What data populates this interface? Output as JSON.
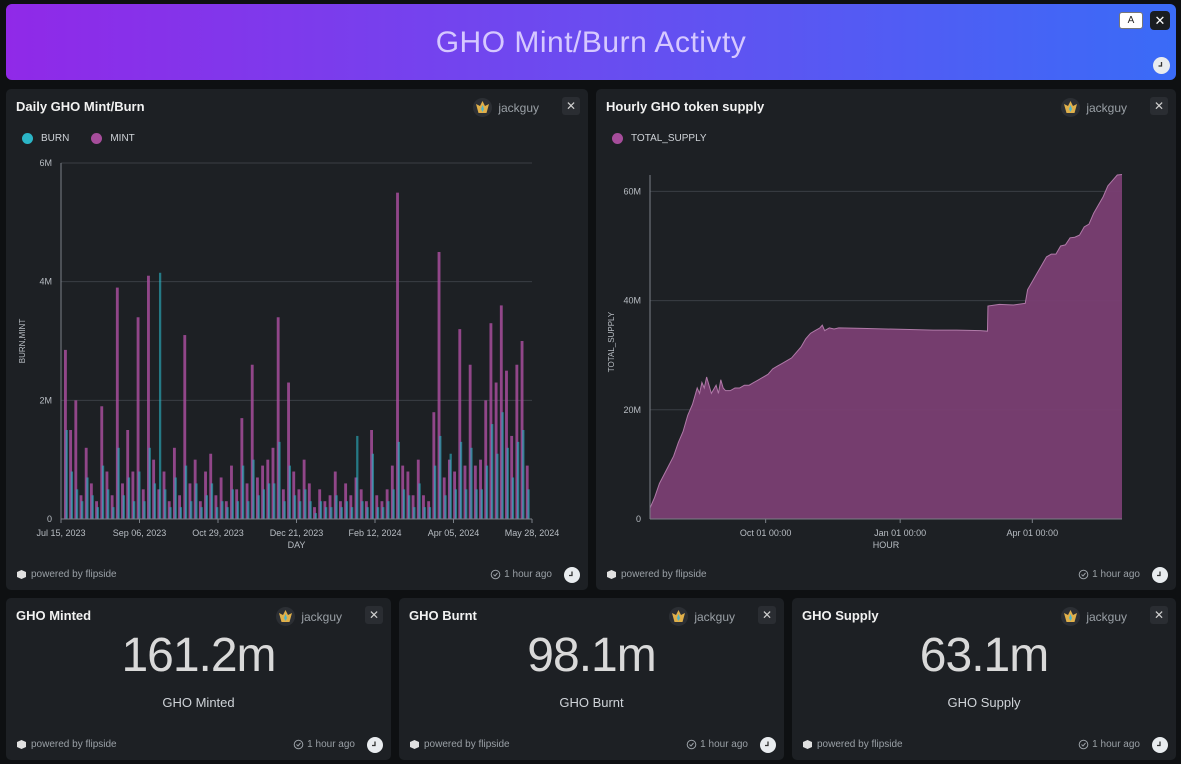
{
  "header": {
    "title": "GHO Mint/Burn Activty",
    "font_button": "A",
    "close": "✕"
  },
  "colors": {
    "burn": "#2bb5c6",
    "mint": "#a64d9b",
    "supply_fill": "#7a3f73",
    "supply_line": "#a04a91"
  },
  "cards": {
    "daily": {
      "title": "Daily GHO Mint/Burn",
      "user": "jackguy",
      "close": "✕",
      "powered": "powered by flipside",
      "updated": "1 hour ago"
    },
    "hourly": {
      "title": "Hourly GHO token supply",
      "user": "jackguy",
      "close": "✕",
      "powered": "powered by flipside",
      "updated": "1 hour ago"
    },
    "minted": {
      "title": "GHO Minted",
      "user": "jackguy",
      "close": "✕",
      "value": "161.2m",
      "label": "GHO Minted",
      "powered": "powered by flipside",
      "updated": "1 hour ago"
    },
    "burnt": {
      "title": "GHO Burnt",
      "user": "jackguy",
      "close": "✕",
      "value": "98.1m",
      "label": "GHO Burnt",
      "powered": "powered by flipside",
      "updated": "1 hour ago"
    },
    "supply": {
      "title": "GHO Supply",
      "user": "jackguy",
      "close": "✕",
      "value": "63.1m",
      "label": "GHO Supply",
      "powered": "powered by flipside",
      "updated": "1 hour ago"
    }
  },
  "chart_data": [
    {
      "type": "bar",
      "title": "Daily GHO Mint/Burn",
      "xlabel": "DAY",
      "ylabel": "BURN,MINT",
      "ylim": [
        0,
        6000000
      ],
      "yticks": [
        "0",
        "2M",
        "4M",
        "6M"
      ],
      "ytick_values": [
        0,
        2000000,
        4000000,
        6000000
      ],
      "xticks": [
        "Jul 15, 2023",
        "Sep 06, 2023",
        "Oct 29, 2023",
        "Dec 21, 2023",
        "Feb 12, 2024",
        "Apr 05, 2024",
        "May 28, 2024"
      ],
      "legend": [
        "BURN",
        "MINT"
      ],
      "series": [
        {
          "name": "MINT",
          "values": [
            2850000,
            1500000,
            2000000,
            400000,
            1200000,
            600000,
            300000,
            1900000,
            800000,
            400000,
            3900000,
            600000,
            1500000,
            800000,
            3400000,
            500000,
            4100000,
            1000000,
            500000,
            800000,
            300000,
            1200000,
            400000,
            3100000,
            600000,
            1000000,
            300000,
            800000,
            1100000,
            400000,
            700000,
            300000,
            900000,
            500000,
            1700000,
            600000,
            2600000,
            700000,
            900000,
            1000000,
            1200000,
            3400000,
            500000,
            2300000,
            800000,
            500000,
            1000000,
            600000,
            200000,
            500000,
            300000,
            400000,
            800000,
            300000,
            600000,
            400000,
            700000,
            500000,
            300000,
            1500000,
            400000,
            300000,
            500000,
            900000,
            5500000,
            900000,
            800000,
            400000,
            1000000,
            400000,
            300000,
            1800000,
            4500000,
            700000,
            1000000,
            800000,
            3200000,
            900000,
            2600000,
            900000,
            1000000,
            2000000,
            3300000,
            2300000,
            3600000,
            2500000,
            1400000,
            2600000,
            3000000,
            900000
          ]
        },
        {
          "name": "BURN",
          "values": [
            1500000,
            800000,
            500000,
            300000,
            700000,
            400000,
            200000,
            900000,
            500000,
            200000,
            1200000,
            400000,
            700000,
            300000,
            800000,
            300000,
            1200000,
            600000,
            4150000,
            500000,
            200000,
            700000,
            200000,
            900000,
            300000,
            600000,
            200000,
            400000,
            600000,
            200000,
            300000,
            200000,
            500000,
            300000,
            900000,
            300000,
            1000000,
            400000,
            500000,
            600000,
            600000,
            1300000,
            300000,
            900000,
            400000,
            300000,
            500000,
            300000,
            100000,
            300000,
            200000,
            200000,
            400000,
            200000,
            300000,
            200000,
            1400000,
            300000,
            200000,
            1100000,
            200000,
            200000,
            300000,
            500000,
            1300000,
            500000,
            400000,
            200000,
            600000,
            200000,
            200000,
            900000,
            1400000,
            400000,
            1100000,
            500000,
            1300000,
            500000,
            1200000,
            500000,
            500000,
            900000,
            1600000,
            1100000,
            1800000,
            1200000,
            700000,
            1300000,
            1500000,
            500000
          ]
        }
      ]
    },
    {
      "type": "area",
      "title": "Hourly GHO token supply",
      "xlabel": "HOUR",
      "ylabel": "TOTAL_SUPPLY",
      "ylim": [
        0,
        63000000
      ],
      "yticks": [
        "0",
        "20M",
        "40M",
        "60M"
      ],
      "ytick_values": [
        0,
        20000000,
        40000000,
        60000000
      ],
      "xticks": [
        "Oct 01 00:00",
        "Jan 01 00:00",
        "Apr 01 00:00"
      ],
      "xtick_positions": [
        0.245,
        0.53,
        0.81
      ],
      "legend": [
        "TOTAL_SUPPLY"
      ],
      "series": [
        {
          "name": "TOTAL_SUPPLY",
          "x": [
            0,
            0.01,
            0.02,
            0.035,
            0.05,
            0.06,
            0.07,
            0.08,
            0.09,
            0.1,
            0.105,
            0.11,
            0.115,
            0.12,
            0.13,
            0.14,
            0.145,
            0.15,
            0.155,
            0.16,
            0.17,
            0.18,
            0.19,
            0.2,
            0.21,
            0.22,
            0.23,
            0.24,
            0.25,
            0.26,
            0.27,
            0.28,
            0.29,
            0.3,
            0.31,
            0.32,
            0.33,
            0.34,
            0.35,
            0.36,
            0.365,
            0.37,
            0.38,
            0.39,
            0.4,
            0.45,
            0.5,
            0.55,
            0.6,
            0.65,
            0.7,
            0.715,
            0.716,
            0.74,
            0.77,
            0.795,
            0.8,
            0.81,
            0.82,
            0.83,
            0.84,
            0.85,
            0.86,
            0.87,
            0.88,
            0.89,
            0.9,
            0.91,
            0.92,
            0.93,
            0.94,
            0.95,
            0.96,
            0.97,
            0.98,
            0.99,
            1.0
          ],
          "values": [
            2000000,
            4000000,
            6500000,
            9000000,
            11500000,
            14000000,
            16000000,
            19000000,
            21000000,
            24000000,
            23000000,
            25000000,
            24000000,
            26000000,
            23000000,
            24500000,
            23000000,
            25500000,
            24000000,
            23500000,
            23500000,
            24000000,
            24000000,
            24500000,
            24500000,
            25000000,
            25500000,
            26000000,
            26500000,
            27500000,
            28000000,
            28500000,
            29000000,
            29500000,
            30500000,
            31500000,
            33000000,
            34000000,
            34500000,
            35000000,
            35500000,
            34500000,
            35000000,
            34800000,
            35000000,
            34900000,
            34800000,
            34700000,
            34600000,
            34600000,
            34500000,
            34400000,
            39000000,
            39300000,
            39200000,
            39500000,
            42000000,
            43500000,
            45000000,
            46500000,
            48000000,
            48500000,
            48500000,
            50000000,
            50200000,
            51500000,
            51600000,
            52000000,
            53500000,
            54000000,
            56000000,
            57500000,
            59000000,
            61000000,
            62000000,
            63000000,
            63100000
          ]
        }
      ]
    }
  ]
}
